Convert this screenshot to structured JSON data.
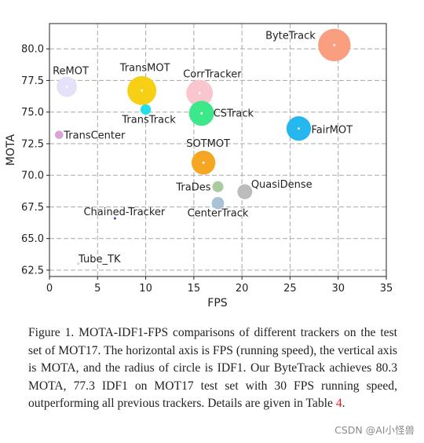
{
  "chart_data": {
    "type": "scatter",
    "xlabel": "FPS",
    "ylabel": "MOTA",
    "xlim": [
      0,
      35
    ],
    "ylim": [
      62,
      82
    ],
    "xticks": [
      "0",
      "5",
      "10",
      "15",
      "20",
      "25",
      "30",
      "35"
    ],
    "yticks": [
      "62.5",
      "65.0",
      "67.5",
      "70.0",
      "72.5",
      "75.0",
      "77.5",
      "80.0"
    ],
    "grid": true,
    "points": [
      {
        "name": "ByteTrack",
        "fps": 29.6,
        "mota": 80.3,
        "idf1": 77.3,
        "color": "#f99f80",
        "center_dot": true
      },
      {
        "name": "ReMOT",
        "fps": 1.8,
        "mota": 77.0,
        "idf1": 69.7,
        "color": "#e4e1f8",
        "center_dot": true
      },
      {
        "name": "TransMOT",
        "fps": 9.6,
        "mota": 76.7,
        "idf1": 75.1,
        "color": "#f7cf14",
        "center_dot": true
      },
      {
        "name": "CorrTracker",
        "fps": 15.6,
        "mota": 76.5,
        "idf1": 73.6,
        "color": "#f9c6ce",
        "center_dot": true
      },
      {
        "name": "TransTrack",
        "fps": 10.0,
        "mota": 75.2,
        "idf1": 63.5,
        "color": "#22e0e8",
        "center_dot": false
      },
      {
        "name": "CSTrack",
        "fps": 15.8,
        "mota": 74.9,
        "idf1": 72.6,
        "color": "#3de88a",
        "center_dot": true
      },
      {
        "name": "FairMOT",
        "fps": 25.9,
        "mota": 73.7,
        "idf1": 72.3,
        "color": "#27b7ef",
        "center_dot": true
      },
      {
        "name": "TransCenter",
        "fps": 1.0,
        "mota": 73.2,
        "idf1": 62.2,
        "color": "#d9a3db",
        "center_dot": false
      },
      {
        "name": "SOTMOT",
        "fps": 16.0,
        "mota": 71.0,
        "idf1": 71.9,
        "color": "#f5a623",
        "center_dot": true
      },
      {
        "name": "TraDes",
        "fps": 17.5,
        "mota": 69.1,
        "idf1": 63.9,
        "color": "#a8cba0",
        "center_dot": false
      },
      {
        "name": "QuasiDense",
        "fps": 20.3,
        "mota": 68.7,
        "idf1": 66.3,
        "color": "#bcbcbc",
        "center_dot": false
      },
      {
        "name": "CenterTrack",
        "fps": 17.5,
        "mota": 67.8,
        "idf1": 64.7,
        "color": "#a9c3d6",
        "center_dot": false
      },
      {
        "name": "Chained-Tracker",
        "fps": 6.8,
        "mota": 66.6,
        "idf1": 57.4,
        "color": "#3a3fcf",
        "center_dot": false
      },
      {
        "name": "Tube_TK",
        "fps": 3.0,
        "mota": 63.0,
        "idf1": 58.6,
        "color": "#d6d6d6",
        "center_dot": false
      }
    ]
  },
  "caption": {
    "text": "Figure 1. MOTA-IDF1-FPS comparisons of different trackers on the test set of MOT17. The horizontal axis is FPS (running speed), the vertical axis is MOTA, and the radius of circle is IDF1. Our ByteTrack achieves 80.3 MOTA, 77.3 IDF1 on MOT17 test set with 30 FPS running speed, outperforming all previous trackers. Details are given in Table ",
    "table_ref": "4",
    "end": "."
  },
  "watermark": "CSDN @AI小怪兽"
}
